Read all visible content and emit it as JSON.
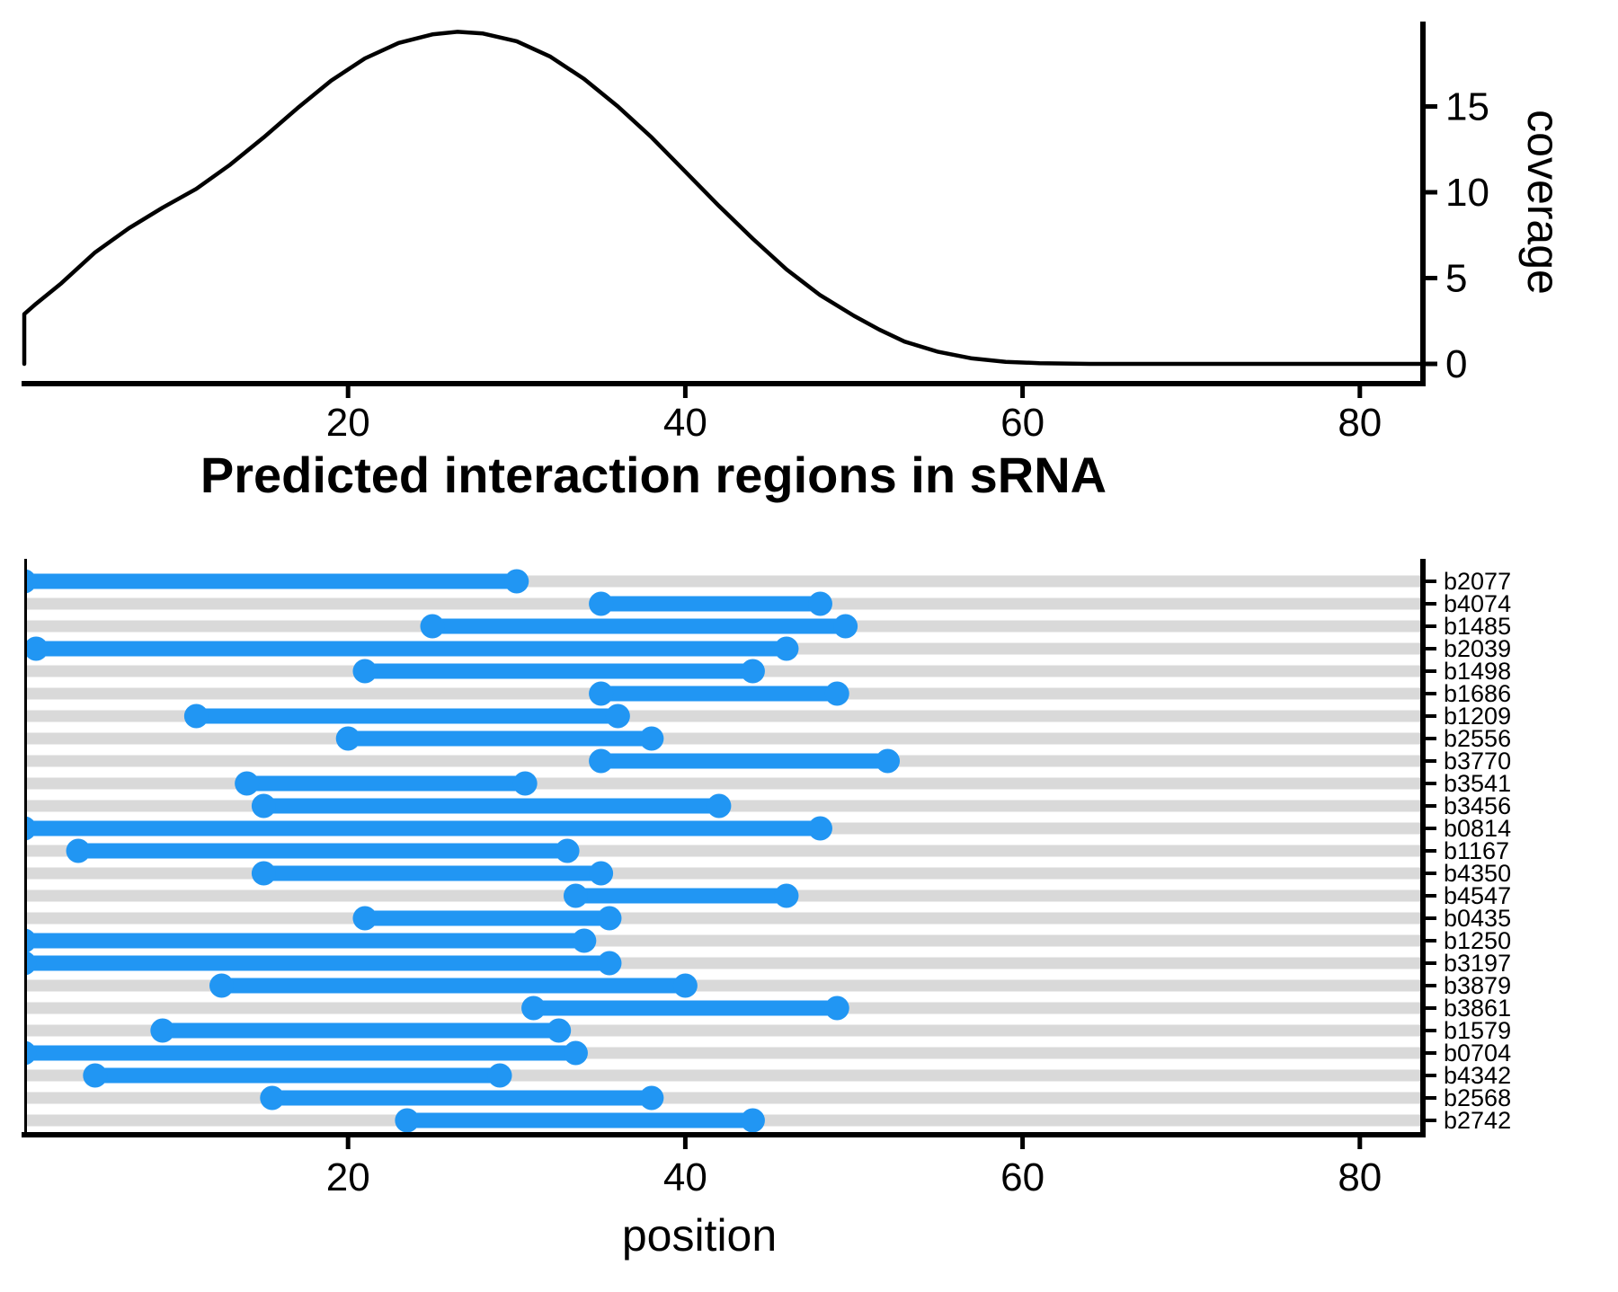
{
  "title": "Predicted interaction regions in sRNA",
  "colors": {
    "segment_blue": "#2196F3",
    "stripe_gray": "#D9D9D9",
    "axis_black": "#000000",
    "background": "#FFFFFF"
  },
  "chart_data": [
    {
      "type": "line",
      "name": "coverage-density-curve",
      "title": "",
      "xlabel": "",
      "ylabel": "coverage",
      "x_ticks": [
        20,
        40,
        60,
        80
      ],
      "y_ticks": [
        0,
        5,
        10,
        15
      ],
      "xlim": [
        0.8,
        83.6
      ],
      "ylim": [
        -1.2,
        20.9
      ],
      "grid": "off",
      "legend": "none",
      "points": [
        [
          0.8,
          2.9
        ],
        [
          1.5,
          3.5
        ],
        [
          3,
          4.7
        ],
        [
          5,
          6.5
        ],
        [
          7,
          7.9
        ],
        [
          9,
          9.1
        ],
        [
          11,
          10.2
        ],
        [
          13,
          11.6
        ],
        [
          15,
          13.2
        ],
        [
          17,
          14.9
        ],
        [
          19,
          16.5
        ],
        [
          21,
          17.8
        ],
        [
          23,
          18.7
        ],
        [
          25,
          19.2
        ],
        [
          26.5,
          19.35
        ],
        [
          28,
          19.25
        ],
        [
          30,
          18.8
        ],
        [
          32,
          17.9
        ],
        [
          34,
          16.6
        ],
        [
          36,
          15.0
        ],
        [
          38,
          13.2
        ],
        [
          40,
          11.2
        ],
        [
          42,
          9.2
        ],
        [
          44,
          7.3
        ],
        [
          46,
          5.5
        ],
        [
          48,
          4.0
        ],
        [
          50,
          2.8
        ],
        [
          51.5,
          2.0
        ],
        [
          53,
          1.3
        ],
        [
          55,
          0.7
        ],
        [
          57,
          0.32
        ],
        [
          59,
          0.12
        ],
        [
          61,
          0.04
        ],
        [
          64,
          0
        ],
        [
          70,
          0
        ],
        [
          78,
          0
        ],
        [
          83.6,
          0
        ]
      ]
    },
    {
      "type": "segment-range",
      "name": "predicted-interaction-regions",
      "title": "Predicted interaction regions in sRNA",
      "xlabel": "position",
      "ylabel": "",
      "x_ticks": [
        20,
        40,
        60,
        80
      ],
      "xlim": [
        0.8,
        83.6
      ],
      "grid": "off",
      "legend": "none",
      "rows": [
        {
          "label": "b2077",
          "start": 0.8,
          "end": 30
        },
        {
          "label": "b4074",
          "start": 35,
          "end": 48
        },
        {
          "label": "b1485",
          "start": 25,
          "end": 49.5
        },
        {
          "label": "b2039",
          "start": 1.5,
          "end": 46
        },
        {
          "label": "b1498",
          "start": 21,
          "end": 44
        },
        {
          "label": "b1686",
          "start": 35,
          "end": 49
        },
        {
          "label": "b1209",
          "start": 11,
          "end": 36
        },
        {
          "label": "b2556",
          "start": 20,
          "end": 38
        },
        {
          "label": "b3770",
          "start": 35,
          "end": 52
        },
        {
          "label": "b3541",
          "start": 14,
          "end": 30.5
        },
        {
          "label": "b3456",
          "start": 15,
          "end": 42
        },
        {
          "label": "b0814",
          "start": 0.8,
          "end": 48
        },
        {
          "label": "b1167",
          "start": 4,
          "end": 33
        },
        {
          "label": "b4350",
          "start": 15,
          "end": 35
        },
        {
          "label": "b4547",
          "start": 33.5,
          "end": 46
        },
        {
          "label": "b0435",
          "start": 21,
          "end": 35.5
        },
        {
          "label": "b1250",
          "start": 0.8,
          "end": 34
        },
        {
          "label": "b3197",
          "start": 0.8,
          "end": 35.5
        },
        {
          "label": "b3879",
          "start": 12.5,
          "end": 40
        },
        {
          "label": "b3861",
          "start": 31,
          "end": 49
        },
        {
          "label": "b1579",
          "start": 9,
          "end": 32.5
        },
        {
          "label": "b0704",
          "start": 0.8,
          "end": 33.5
        },
        {
          "label": "b4342",
          "start": 5,
          "end": 29
        },
        {
          "label": "b2568",
          "start": 15.5,
          "end": 38
        },
        {
          "label": "b2742",
          "start": 23.5,
          "end": 44
        }
      ]
    }
  ]
}
